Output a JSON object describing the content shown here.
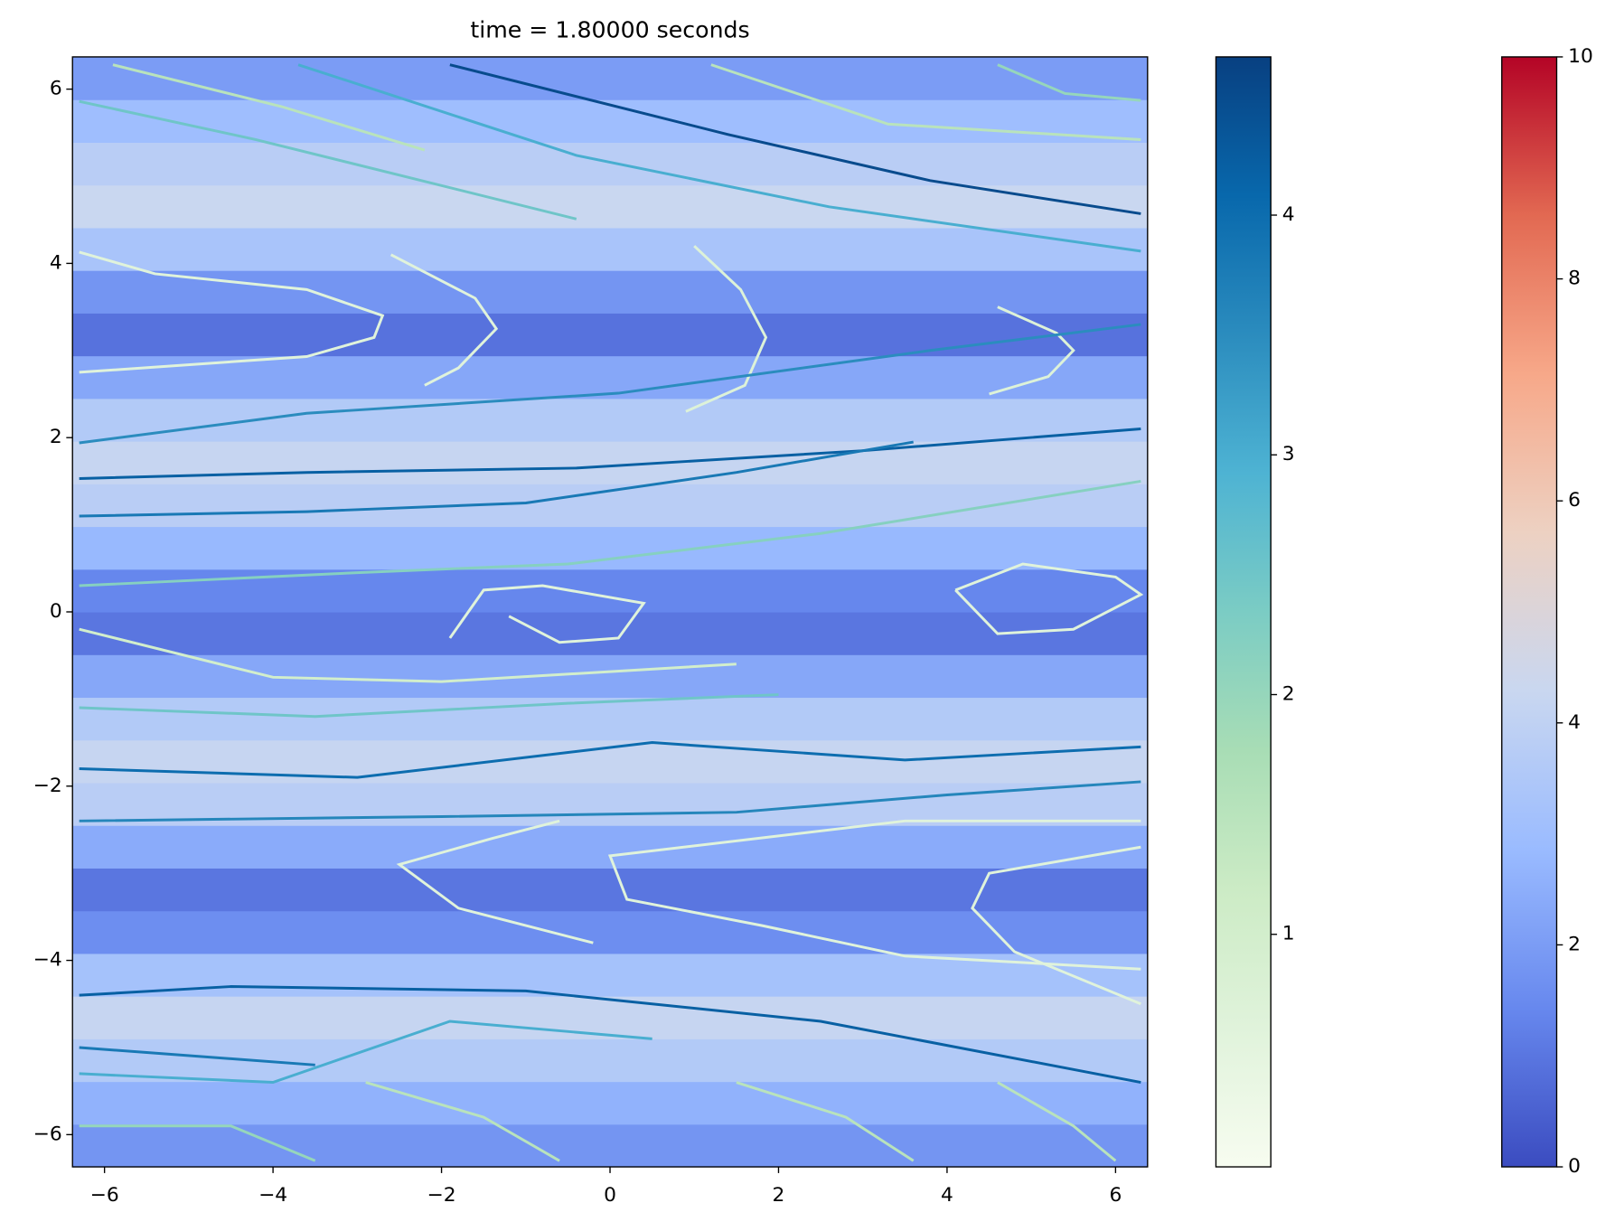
{
  "chart_data": {
    "type": "streamplot",
    "title": "time = 1.80000 seconds",
    "xlim": [
      -6.38,
      6.38
    ],
    "ylim": [
      -6.37,
      6.37
    ],
    "xticks": [
      {
        "value": -6,
        "label": "−6"
      },
      {
        "value": -4,
        "label": "−4"
      },
      {
        "value": -2,
        "label": "−2"
      },
      0,
      2,
      4,
      6
    ],
    "yticks": [
      {
        "value": -6,
        "label": "−6"
      },
      {
        "value": -4,
        "label": "−4"
      },
      {
        "value": -2,
        "label": "−2"
      },
      0,
      2,
      4,
      6
    ],
    "heatmap": {
      "cmap": [
        "#3b4cc0",
        "#6788ee",
        "#9abbff",
        "#c9d7f0",
        "#edd1c2",
        "#f7a889",
        "#e26952",
        "#b40426"
      ],
      "clim": [
        0,
        10
      ],
      "ticks": [
        0,
        2,
        4,
        6,
        8,
        10
      ],
      "values": [
        1.8,
        2.6,
        3.6,
        4.2,
        3.2,
        1.6,
        1.0,
        2.4,
        3.8,
        4.2,
        3.6,
        2.3,
        1.0,
        1.4,
        2.8,
        3.8,
        4.2,
        3.6,
        2.3,
        0.9,
        1.8,
        3.3,
        4.3,
        3.8,
        3.0,
        2.0
      ]
    },
    "streamlines": {
      "cmap": [
        "#f7fcf0",
        "#e0f3db",
        "#ccebc5",
        "#a8ddb5",
        "#7bccc4",
        "#4eb3d3",
        "#2b8cbe",
        "#0868ac",
        "#084081"
      ],
      "clim": [
        0.03,
        4.66
      ],
      "ticks": [
        1,
        2,
        3,
        4
      ],
      "lines": [
        {
          "x": [
            -1.9,
            1.4,
            3.8,
            6.3
          ],
          "y": [
            6.28,
            5.48,
            4.95,
            4.57
          ],
          "speed": 4.5
        },
        {
          "x": [
            -3.7,
            -0.4,
            2.6,
            6.3
          ],
          "y": [
            6.28,
            5.24,
            4.65,
            4.14
          ],
          "speed": 3.0
        },
        {
          "x": [
            -6.3,
            -4.2,
            -0.4
          ],
          "y": [
            5.86,
            5.42,
            4.51
          ],
          "speed": 2.5
        },
        {
          "x": [
            -5.9,
            -3.9,
            -2.2
          ],
          "y": [
            6.28,
            5.8,
            5.3
          ],
          "speed": 1.5
        },
        {
          "x": [
            1.2,
            3.3,
            6.3
          ],
          "y": [
            6.28,
            5.6,
            5.42
          ],
          "speed": 1.5
        },
        {
          "x": [
            4.6,
            5.4,
            6.3
          ],
          "y": [
            6.28,
            5.95,
            5.87
          ],
          "speed": 2.0
        },
        {
          "x": [
            -6.3,
            -5.4,
            -3.6,
            -2.7,
            -2.8,
            -3.6,
            -6.3
          ],
          "y": [
            4.13,
            3.88,
            3.7,
            3.4,
            3.15,
            2.93,
            2.75
          ],
          "speed": 0.6
        },
        {
          "x": [
            -2.6,
            -1.6,
            -1.35,
            -1.8,
            -2.2
          ],
          "y": [
            4.1,
            3.6,
            3.25,
            2.8,
            2.6
          ],
          "speed": 0.6
        },
        {
          "x": [
            1.0,
            1.55,
            1.85,
            1.6,
            0.9
          ],
          "y": [
            4.2,
            3.7,
            3.15,
            2.6,
            2.3
          ],
          "speed": 0.7
        },
        {
          "x": [
            4.6,
            5.3,
            5.5,
            5.2,
            4.5
          ],
          "y": [
            3.5,
            3.2,
            3.0,
            2.7,
            2.5
          ],
          "speed": 0.7
        },
        {
          "x": [
            -6.3,
            -3.6,
            0.1,
            3.8,
            6.3
          ],
          "y": [
            1.94,
            2.28,
            2.51,
            3.0,
            3.3
          ],
          "speed": 3.5
        },
        {
          "x": [
            -6.3,
            -3.6,
            -0.4,
            3.0,
            6.3
          ],
          "y": [
            1.53,
            1.6,
            1.65,
            1.85,
            2.1
          ],
          "speed": 4.2
        },
        {
          "x": [
            -6.3,
            -3.6,
            -1.0,
            1.5,
            3.6
          ],
          "y": [
            1.1,
            1.15,
            1.25,
            1.6,
            1.95
          ],
          "speed": 3.8
        },
        {
          "x": [
            -6.3,
            -3.0,
            -0.5,
            2.5,
            6.3
          ],
          "y": [
            0.3,
            0.45,
            0.55,
            0.9,
            1.5
          ],
          "speed": 2.2
        },
        {
          "x": [
            4.1,
            4.9,
            6.0,
            6.3,
            5.5,
            4.6,
            4.1
          ],
          "y": [
            0.25,
            0.55,
            0.4,
            0.2,
            -0.2,
            -0.25,
            0.25
          ],
          "speed": 0.6
        },
        {
          "x": [
            -1.9,
            -1.5,
            -0.8,
            0.4,
            0.1,
            -0.6,
            -1.2
          ],
          "y": [
            -0.3,
            0.25,
            0.3,
            0.1,
            -0.3,
            -0.35,
            -0.05
          ],
          "speed": 0.6
        },
        {
          "x": [
            -6.3,
            -4.0,
            -2.0,
            1.5
          ],
          "y": [
            -0.2,
            -0.75,
            -0.8,
            -0.6
          ],
          "speed": 1.0
        },
        {
          "x": [
            -6.3,
            -3.5,
            -0.5,
            2.0
          ],
          "y": [
            -1.1,
            -1.2,
            -1.05,
            -0.95
          ],
          "speed": 2.5
        },
        {
          "x": [
            -6.3,
            -3.0,
            0.5,
            3.5,
            6.3
          ],
          "y": [
            -1.8,
            -1.9,
            -1.5,
            -1.7,
            -1.55
          ],
          "speed": 4.0
        },
        {
          "x": [
            -6.3,
            -2.0,
            1.5,
            4.0,
            6.3
          ],
          "y": [
            -2.4,
            -2.35,
            -2.3,
            -2.1,
            -1.95
          ],
          "speed": 3.6
        },
        {
          "x": [
            -0.6,
            -1.4,
            -2.5,
            -1.8,
            -0.2
          ],
          "y": [
            -2.4,
            -2.6,
            -2.9,
            -3.4,
            -3.8
          ],
          "speed": 0.6
        },
        {
          "x": [
            6.3,
            3.5,
            0.0,
            0.2,
            1.8,
            3.5,
            6.3
          ],
          "y": [
            -2.4,
            -2.4,
            -2.8,
            -3.3,
            -3.6,
            -3.95,
            -4.1
          ],
          "speed": 0.6
        },
        {
          "x": [
            6.3,
            4.5,
            4.3,
            4.8,
            6.3
          ],
          "y": [
            -2.7,
            -3.0,
            -3.4,
            -3.9,
            -4.5
          ],
          "speed": 0.6
        },
        {
          "x": [
            -6.3,
            -4.5,
            -1.0,
            2.5,
            6.3
          ],
          "y": [
            -4.4,
            -4.3,
            -4.35,
            -4.7,
            -5.4
          ],
          "speed": 4.2
        },
        {
          "x": [
            -6.3,
            -3.5
          ],
          "y": [
            -5.0,
            -5.2
          ],
          "speed": 3.8
        },
        {
          "x": [
            -6.3,
            -4.0,
            -1.9,
            0.5
          ],
          "y": [
            -5.3,
            -5.4,
            -4.7,
            -4.9
          ],
          "speed": 3.0
        },
        {
          "x": [
            -6.3,
            -4.5,
            -3.5
          ],
          "y": [
            -5.9,
            -5.9,
            -6.3
          ],
          "speed": 2.0
        },
        {
          "x": [
            -2.9,
            -1.5,
            -0.6
          ],
          "y": [
            -5.4,
            -5.8,
            -6.3
          ],
          "speed": 1.5
        },
        {
          "x": [
            1.5,
            2.8,
            3.6
          ],
          "y": [
            -5.4,
            -5.8,
            -6.3
          ],
          "speed": 1.5
        },
        {
          "x": [
            4.6,
            5.5,
            6.0
          ],
          "y": [
            -5.4,
            -5.9,
            -6.3
          ],
          "speed": 1.5
        }
      ]
    }
  }
}
